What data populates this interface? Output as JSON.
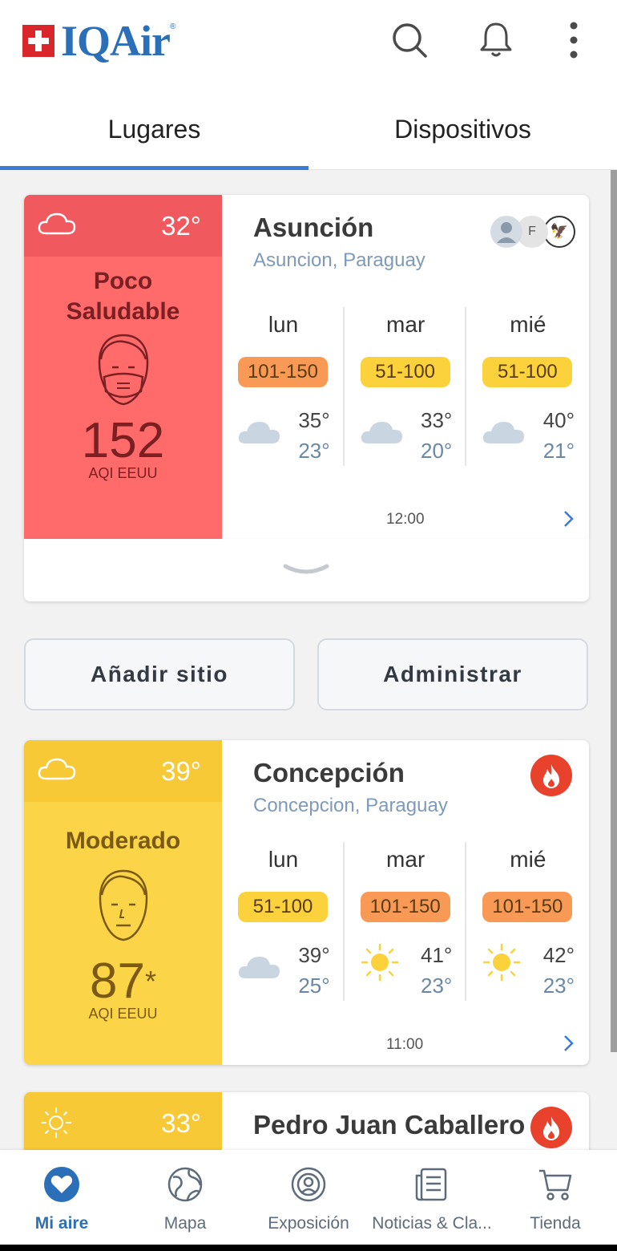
{
  "header": {
    "logo_text": "IQAir",
    "icons": [
      "search-icon",
      "bell-icon",
      "more-vert-icon"
    ],
    "colors": {
      "brand_blue": "#2b6fb8",
      "flag_red": "#d9262a"
    }
  },
  "tabs": [
    {
      "label": "Lugares",
      "active": true
    },
    {
      "label": "Dispositivos",
      "active": false
    }
  ],
  "cards": [
    {
      "city": "Asunción",
      "region": "Asuncion, Paraguay",
      "temp": "32°",
      "weather_icon": "cloud-icon",
      "status": "Poco Saludable",
      "aqi": "152",
      "aqi_unit": "AQI EEUU",
      "update_time": "12:00",
      "colors": {
        "top": "#f05a5e",
        "panel": "#ff6b6b",
        "text": "#7a1f22"
      },
      "sources": [
        "user-avatar-icon",
        "F",
        "embassy-seal-icon"
      ],
      "forecast": [
        {
          "day": "lun",
          "aqi_range": "101-150",
          "badge_color": "#f89a55",
          "icon": "cloud-icon",
          "high": "35°",
          "low": "23°"
        },
        {
          "day": "mar",
          "aqi_range": "51-100",
          "badge_color": "#fbd23c",
          "icon": "cloud-icon",
          "high": "33°",
          "low": "20°"
        },
        {
          "day": "mié",
          "aqi_range": "51-100",
          "badge_color": "#fbd23c",
          "icon": "cloud-icon",
          "high": "40°",
          "low": "21°"
        }
      ]
    },
    {
      "city": "Concepción",
      "region": "Concepcion, Paraguay",
      "temp": "39°",
      "weather_icon": "cloud-icon",
      "status": "Moderado",
      "aqi": "87",
      "aqi_suffix": "*",
      "aqi_unit": "AQI EEUU",
      "update_time": "11:00",
      "colors": {
        "top": "#f7c936",
        "panel": "#fbd447",
        "text": "#7a5a14"
      },
      "badge_icon": "fire-icon",
      "forecast": [
        {
          "day": "lun",
          "aqi_range": "51-100",
          "badge_color": "#fbd23c",
          "icon": "cloud-icon",
          "high": "39°",
          "low": "25°"
        },
        {
          "day": "mar",
          "aqi_range": "101-150",
          "badge_color": "#f89a55",
          "icon": "sun-icon",
          "high": "41°",
          "low": "23°"
        },
        {
          "day": "mié",
          "aqi_range": "101-150",
          "badge_color": "#f89a55",
          "icon": "sun-icon",
          "high": "42°",
          "low": "23°"
        }
      ]
    },
    {
      "city": "Pedro Juan Caballero",
      "temp": "33°",
      "weather_icon": "sun-icon",
      "badge_icon": "fire-icon",
      "colors": {
        "top": "#f7c936"
      }
    }
  ],
  "buttons": {
    "add_place": "Añadir sitio",
    "manage": "Administrar"
  },
  "bottom_nav": [
    {
      "label": "Mi aire",
      "icon": "heart-icon",
      "active": true
    },
    {
      "label": "Mapa",
      "icon": "globe-icon",
      "active": false
    },
    {
      "label": "Exposición",
      "icon": "exposure-icon",
      "active": false
    },
    {
      "label": "Noticias & Cla...",
      "icon": "news-icon",
      "active": false
    },
    {
      "label": "Tienda",
      "icon": "cart-icon",
      "active": false
    }
  ]
}
